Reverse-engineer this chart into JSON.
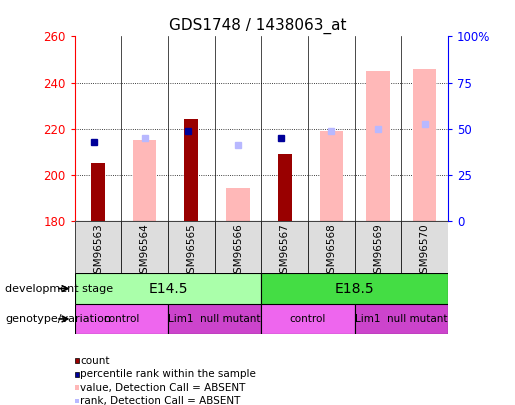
{
  "title": "GDS1748 / 1438063_at",
  "samples": [
    "GSM96563",
    "GSM96564",
    "GSM96565",
    "GSM96566",
    "GSM96567",
    "GSM96568",
    "GSM96569",
    "GSM96570"
  ],
  "ylim_left": [
    180,
    260
  ],
  "ylim_right": [
    0,
    100
  ],
  "yticks_left": [
    180,
    200,
    220,
    240,
    260
  ],
  "yticks_right": [
    0,
    25,
    50,
    75,
    100
  ],
  "ytick_labels_right": [
    "0",
    "25",
    "50",
    "75",
    "100%"
  ],
  "count_values": [
    205,
    null,
    224,
    null,
    209,
    null,
    null,
    null
  ],
  "percentile_values": [
    214,
    null,
    219,
    null,
    216,
    null,
    null,
    null
  ],
  "absent_value_bars": [
    null,
    215,
    null,
    194,
    null,
    219,
    245,
    246
  ],
  "absent_rank_dots": [
    null,
    216,
    null,
    213,
    null,
    219,
    220,
    222
  ],
  "count_color": "#990000",
  "percentile_color": "#000099",
  "absent_value_color": "#ffb8b8",
  "absent_rank_color": "#b8b8ff",
  "dev_stage_e145_color": "#aaffaa",
  "dev_stage_e185_color": "#44dd44",
  "genotype_control_color": "#ee66ee",
  "genotype_mutant_color": "#cc44cc",
  "legend_items": [
    {
      "label": "count",
      "color": "#990000"
    },
    {
      "label": "percentile rank within the sample",
      "color": "#000099"
    },
    {
      "label": "value, Detection Call = ABSENT",
      "color": "#ffb8b8"
    },
    {
      "label": "rank, Detection Call = ABSENT",
      "color": "#b8b8ff"
    }
  ]
}
